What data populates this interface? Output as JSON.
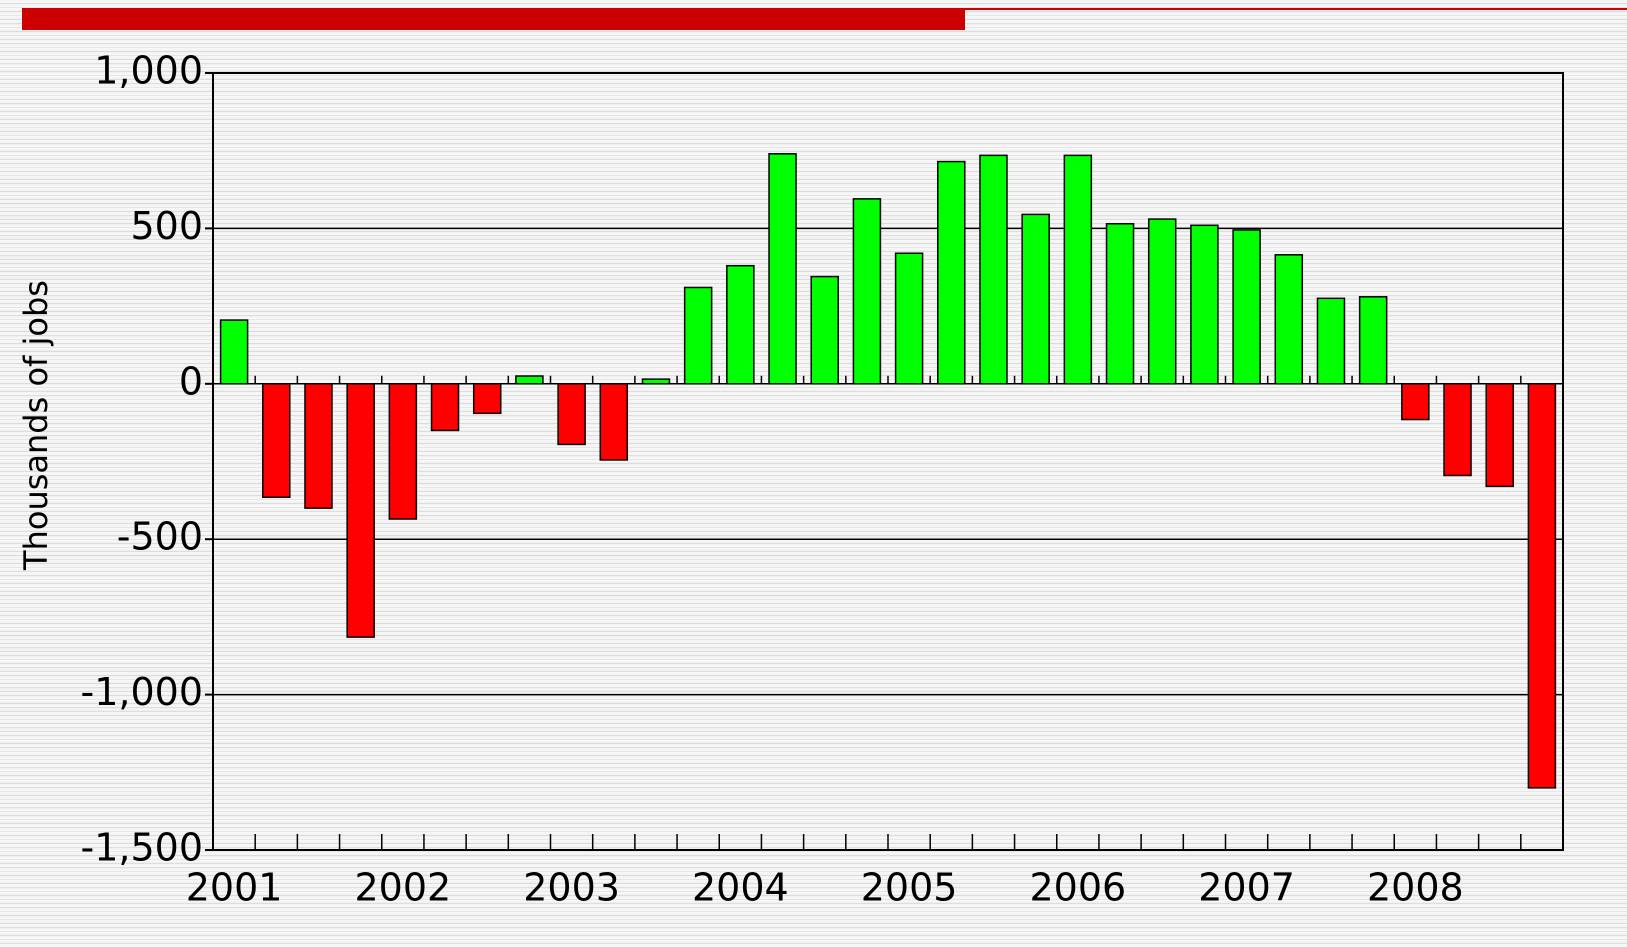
{
  "chart_data": {
    "type": "bar",
    "y_label": "Thousands of jobs",
    "categories": [
      "2001",
      null,
      null,
      null,
      "2002",
      null,
      null,
      null,
      "2003",
      null,
      null,
      null,
      "2004",
      null,
      null,
      null,
      "2005",
      null,
      null,
      null,
      "2006",
      null,
      null,
      null,
      "2007",
      null,
      null,
      null,
      "2008",
      null,
      null,
      null
    ],
    "values": [
      205,
      -365,
      -400,
      -815,
      -435,
      -150,
      -95,
      25,
      -195,
      -245,
      15,
      310,
      380,
      740,
      345,
      595,
      420,
      715,
      735,
      545,
      735,
      515,
      530,
      510,
      495,
      415,
      275,
      280,
      -115,
      -295,
      -330,
      -1300
    ],
    "positive_color": "#00ff00",
    "negative_color": "#ff0000",
    "ylim": [
      -1500,
      1000
    ],
    "yticks": [
      {
        "value": -1500,
        "label": "-1,500"
      },
      {
        "value": -1000,
        "label": "-1,000"
      },
      -500,
      0,
      500,
      {
        "value": 1000,
        "label": "1,000"
      }
    ],
    "grid": true
  }
}
